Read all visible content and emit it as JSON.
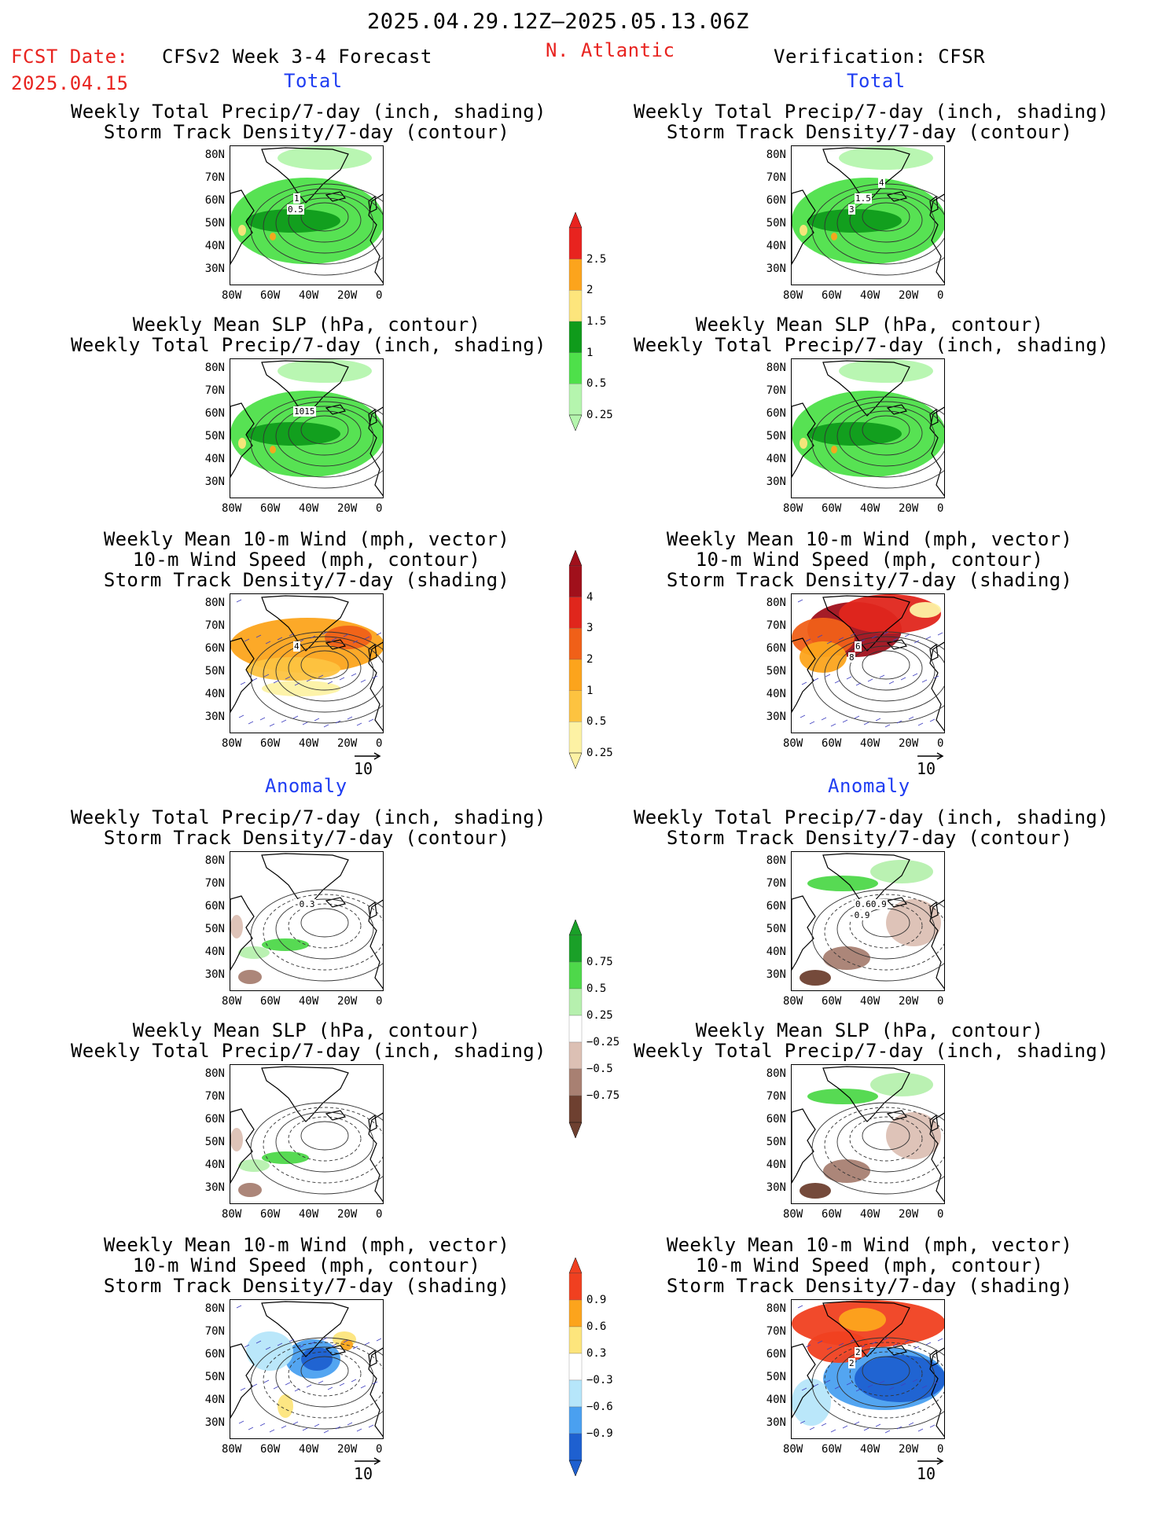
{
  "header": {
    "period": "2025.04.29.12Z–2025.05.13.06Z",
    "fcst_label": "FCST Date:",
    "fcst_date": "2025.04.15",
    "model": "CFSv2 Week 3-4 Forecast",
    "region": "N. Atlantic",
    "verification": "Verification: CFSR"
  },
  "sections": {
    "total": "Total",
    "anomaly": "Anomaly"
  },
  "titles": {
    "precip_storm": [
      "Weekly Total Precip/7-day (inch, shading)",
      "Storm Track Density/7-day (contour)"
    ],
    "slp_precip": [
      "Weekly Mean SLP (hPa, contour)",
      "Weekly Total Precip/7-day (inch, shading)"
    ],
    "wind_storm": [
      "Weekly Mean 10-m Wind (mph, vector)",
      "10-m Wind Speed (mph, contour)",
      "Storm Track Density/7-day (shading)"
    ]
  },
  "axes": {
    "lat": [
      "80N",
      "70N",
      "60N",
      "50N",
      "40N",
      "30N"
    ],
    "lon": [
      "80W",
      "60W",
      "40W",
      "20W",
      "0"
    ]
  },
  "vector_ref": "10",
  "map_labels": {
    "l_precip": [
      "1",
      "0.5"
    ],
    "r_precip": [
      "1.5",
      "3",
      "4"
    ],
    "l_slp": [
      "1015"
    ],
    "l_wind": [
      "4"
    ],
    "r_wind": [
      "6",
      "8"
    ],
    "la_precip": [
      "-0.3"
    ],
    "ra_precip": [
      "0.60.9",
      "-0.9"
    ],
    "ra_wind": [
      "2",
      "2"
    ]
  },
  "colorbars": {
    "precip": {
      "labels": [
        "2.5",
        "2",
        "1.5",
        "1",
        "0.5",
        "0.25"
      ],
      "colors": [
        "#e8231f",
        "#fca41c",
        "#fde57c",
        "#0f9b1b",
        "#4ee04a",
        "#b5f5ae"
      ]
    },
    "storm": {
      "labels": [
        "4",
        "3",
        "2",
        "1",
        "0.5",
        "0.25"
      ],
      "colors": [
        "#a0101b",
        "#e0261c",
        "#f06018",
        "#fca41c",
        "#fdc340",
        "#fdf2a4"
      ]
    },
    "precip_anom": {
      "labels": [
        "0.75",
        "0.5",
        "0.25",
        "−0.25",
        "−0.5",
        "−0.75"
      ],
      "colors": [
        "#1aa028",
        "#4ed84a",
        "#b6f0ae",
        "#ffffff",
        "#dcc0b4",
        "#a88072",
        "#6e4030"
      ]
    },
    "storm_anom": {
      "labels": [
        "0.9",
        "0.6",
        "0.3",
        "−0.3",
        "−0.6",
        "−0.9"
      ],
      "colors": [
        "#f04020",
        "#fca41c",
        "#fde57c",
        "#ffffff",
        "#b6e6fa",
        "#4aa0f0",
        "#1e60d0"
      ]
    }
  }
}
